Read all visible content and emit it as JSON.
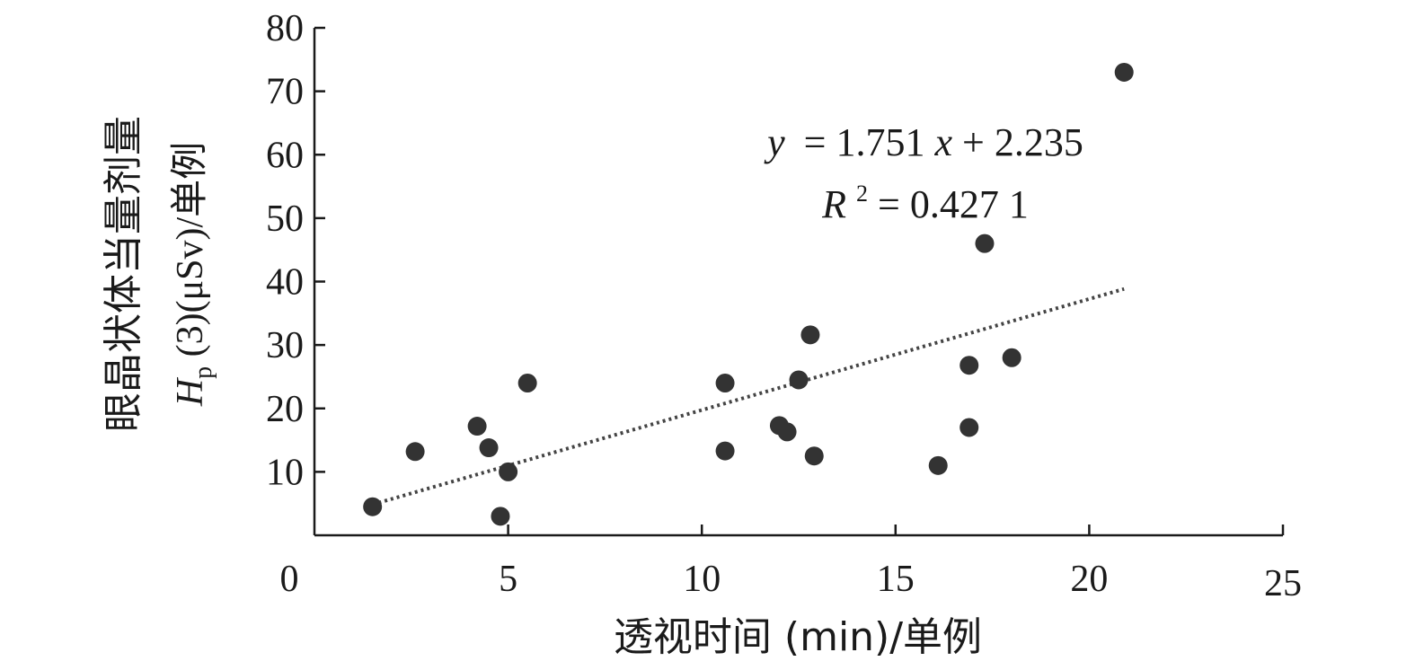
{
  "chart_data": {
    "type": "scatter",
    "xlabel": "透视时间 (min)/单例",
    "ylabel_line1": "眼晶状体当量剂量",
    "ylabel_line2_var": "H",
    "ylabel_line2_sub": "p",
    "ylabel_line2_rest": " (3)(μSv)/单例",
    "xlim": [
      0,
      25
    ],
    "ylim": [
      0,
      80
    ],
    "x_ticks": [
      0,
      5,
      10,
      15,
      20,
      25
    ],
    "y_ticks": [
      10,
      20,
      30,
      40,
      50,
      60,
      70,
      80
    ],
    "grid": false,
    "x": [
      1.5,
      2.6,
      4.2,
      4.5,
      4.8,
      5.0,
      5.5,
      10.6,
      10.6,
      12.0,
      12.2,
      12.5,
      12.8,
      12.9,
      16.1,
      16.9,
      16.9,
      17.3,
      18.0,
      20.9
    ],
    "y": [
      4.5,
      13.2,
      17.2,
      13.8,
      3.0,
      10.0,
      24.0,
      24.0,
      13.3,
      17.3,
      16.3,
      24.5,
      31.6,
      12.5,
      11.0,
      26.8,
      17.0,
      46.0,
      28.0,
      73.0
    ],
    "trendline": {
      "slope": 1.751,
      "intercept": 2.235,
      "x_range": [
        1.5,
        20.9
      ],
      "equation": "= 1.751",
      "equation_var_y": "y",
      "equation_var_x": "x",
      "equation_tail": " + 2.235",
      "r2_var": "R",
      "r2_sup": "2",
      "r2_value": " = 0.427 1"
    }
  }
}
